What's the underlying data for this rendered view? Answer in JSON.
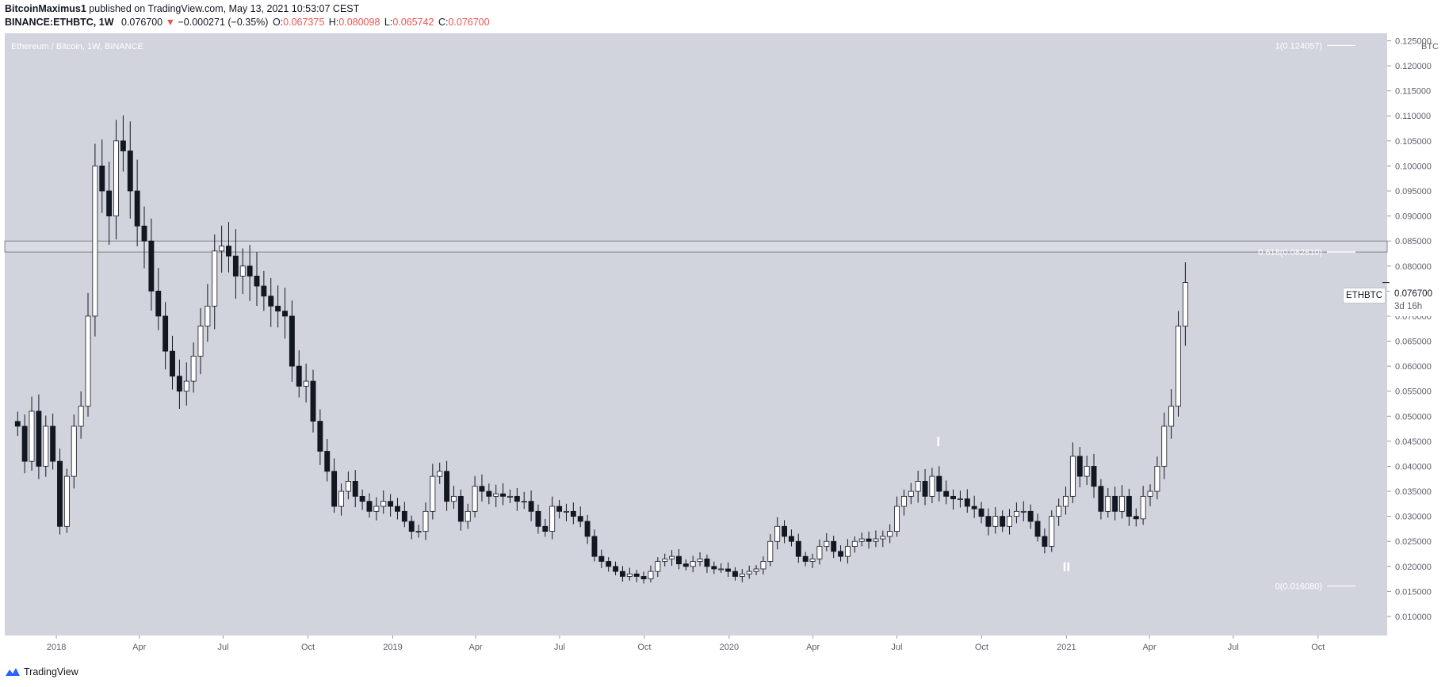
{
  "header": {
    "author": "BitcoinMaximus1",
    "published_text": "published on TradingView.com, May 13, 2021 10:53:07 CEST",
    "symbol": "BINANCE:ETHBTC, 1W",
    "last": "0.076700",
    "change": "−0.000271 (−0.35%)",
    "o_label": "O:",
    "o_value": "0.067375",
    "h_label": "H:",
    "h_value": "0.080098",
    "l_label": "L:",
    "l_value": "0.065742",
    "c_label": "C:",
    "c_value": "0.076700"
  },
  "chart_title": "Ethereum / Bitcoin, 1W, BINANCE",
  "axis_currency": "BTC",
  "price_tag": {
    "symbol": "ETHBTC",
    "value": "0.076700",
    "countdown": "3d 16h"
  },
  "footer": {
    "brand": "TradingView"
  },
  "colors": {
    "plot_bg": "#d1d4dc",
    "up": "#ffffff",
    "down": "#131722",
    "header_red": "#ef5350",
    "fib_text": "#ffffff"
  },
  "icons": {
    "footer_logo": "tradingview-logo-icon",
    "down_arrow": "down-triangle-icon"
  },
  "chart_data": {
    "type": "candlestick",
    "title": "Ethereum / Bitcoin, 1W, BINANCE",
    "ylabel": "BTC",
    "ylim": [
      0.0062,
      0.1265
    ],
    "grid": false,
    "xlim": [
      "2017-11-06",
      "2021-12-15"
    ],
    "y_ticks": [
      "0.010000",
      "0.015000",
      "0.020000",
      "0.025000",
      "0.030000",
      "0.035000",
      "0.040000",
      "0.045000",
      "0.050000",
      "0.055000",
      "0.060000",
      "0.065000",
      "0.070000",
      "0.075000",
      "0.080000",
      "0.085000",
      "0.090000",
      "0.095000",
      "0.100000",
      "0.105000",
      "0.110000",
      "0.115000",
      "0.120000",
      "0.125000"
    ],
    "x_ticks": [
      {
        "label": "2018",
        "date": "2018-01-01"
      },
      {
        "label": "Apr",
        "date": "2018-04-01"
      },
      {
        "label": "Jul",
        "date": "2018-07-01"
      },
      {
        "label": "Oct",
        "date": "2018-10-01"
      },
      {
        "label": "2019",
        "date": "2019-01-01"
      },
      {
        "label": "Apr",
        "date": "2019-04-01"
      },
      {
        "label": "Jul",
        "date": "2019-07-01"
      },
      {
        "label": "Oct",
        "date": "2019-10-01"
      },
      {
        "label": "2020",
        "date": "2020-01-01"
      },
      {
        "label": "Apr",
        "date": "2020-04-01"
      },
      {
        "label": "Jul",
        "date": "2020-07-01"
      },
      {
        "label": "Oct",
        "date": "2020-10-01"
      },
      {
        "label": "2021",
        "date": "2021-01-01"
      },
      {
        "label": "Apr",
        "date": "2021-04-01"
      },
      {
        "label": "Jul",
        "date": "2021-07-01"
      },
      {
        "label": "Oct",
        "date": "2021-10-01"
      }
    ],
    "closes": [
      0.048,
      0.041,
      0.051,
      0.04,
      0.048,
      0.041,
      0.028,
      0.038,
      0.048,
      0.052,
      0.07,
      0.1,
      0.095,
      0.09,
      0.105,
      0.103,
      0.095,
      0.088,
      0.085,
      0.075,
      0.07,
      0.063,
      0.058,
      0.055,
      0.057,
      0.062,
      0.068,
      0.072,
      0.083,
      0.084,
      0.082,
      0.078,
      0.08,
      0.078,
      0.076,
      0.074,
      0.072,
      0.071,
      0.07,
      0.06,
      0.056,
      0.057,
      0.049,
      0.043,
      0.039,
      0.032,
      0.035,
      0.037,
      0.034,
      0.033,
      0.031,
      0.032,
      0.033,
      0.032,
      0.031,
      0.029,
      0.027,
      0.027,
      0.031,
      0.038,
      0.039,
      0.033,
      0.034,
      0.029,
      0.031,
      0.036,
      0.035,
      0.034,
      0.0345,
      0.034,
      0.034,
      0.033,
      0.033,
      0.031,
      0.028,
      0.027,
      0.032,
      0.031,
      0.031,
      0.03,
      0.029,
      0.026,
      0.022,
      0.021,
      0.02,
      0.019,
      0.018,
      0.0185,
      0.018,
      0.0175,
      0.019,
      0.021,
      0.0215,
      0.022,
      0.0205,
      0.02,
      0.021,
      0.0215,
      0.02,
      0.0195,
      0.0195,
      0.019,
      0.018,
      0.0185,
      0.019,
      0.0195,
      0.021,
      0.025,
      0.028,
      0.026,
      0.025,
      0.022,
      0.021,
      0.0215,
      0.024,
      0.025,
      0.023,
      0.022,
      0.024,
      0.025,
      0.0255,
      0.025,
      0.0255,
      0.026,
      0.027,
      0.032,
      0.034,
      0.035,
      0.037,
      0.034,
      0.038,
      0.035,
      0.034,
      0.0335,
      0.0335,
      0.032,
      0.0315,
      0.03,
      0.028,
      0.03,
      0.028,
      0.03,
      0.031,
      0.031,
      0.029,
      0.026,
      0.024,
      0.03,
      0.032,
      0.034,
      0.042,
      0.038,
      0.04,
      0.036,
      0.031,
      0.034,
      0.031,
      0.034,
      0.03,
      0.0295,
      0.034,
      0.035,
      0.04,
      0.048,
      0.052,
      0.068,
      0.0767
    ],
    "series": [
      {
        "name": "ETHBTC",
        "last": 0.0767
      }
    ],
    "fib": [
      {
        "label": "1(0.124057)",
        "value": 0.124057
      },
      {
        "label": "0.618(0.082810)",
        "value": 0.08281
      },
      {
        "label": "0(0.016080)",
        "value": 0.01608
      }
    ],
    "zone": [
      0.0828,
      0.085
    ],
    "annotations": [
      {
        "text": "I",
        "date": "2020-08-15",
        "value": 0.044
      },
      {
        "text": "II",
        "date": "2021-01-01",
        "value": 0.019
      }
    ]
  }
}
